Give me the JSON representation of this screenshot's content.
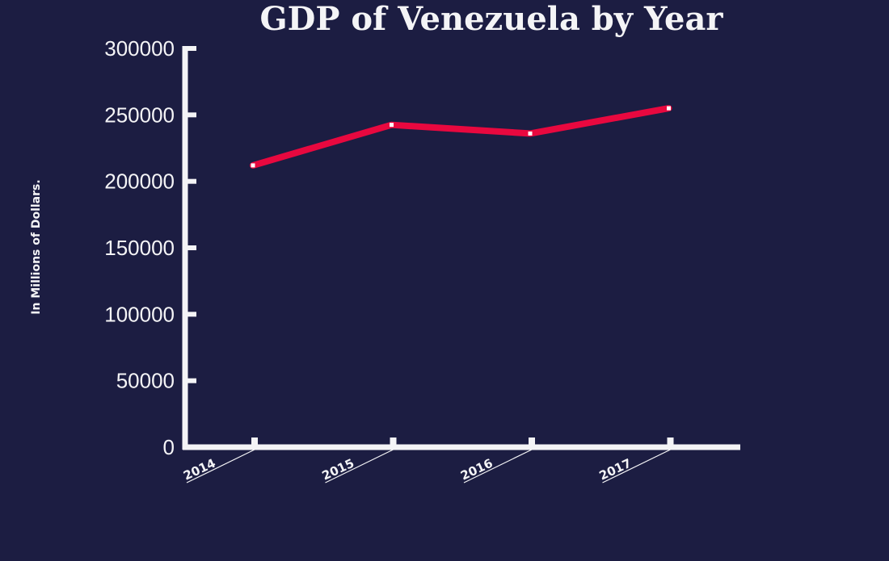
{
  "colors": {
    "background": "#1c1d42",
    "axis": "#f4f4f6",
    "text": "#f4f4f6",
    "line": "#e8083f",
    "marker": "#ffffff"
  },
  "chart_data": {
    "type": "line",
    "title": "GDP of Venezuela by Year",
    "xlabel": "",
    "ylabel": "In Millions of Dollars.",
    "categories": [
      "2014",
      "2015",
      "2016",
      "2017"
    ],
    "series": [
      {
        "values": [
          212000,
          242500,
          236000,
          255000
        ]
      }
    ],
    "ylim": [
      0,
      300000
    ],
    "yticks": [
      "0",
      "50000",
      "100000",
      "150000",
      "200000",
      "250000",
      "300000"
    ],
    "grid": false,
    "legend": "none"
  }
}
